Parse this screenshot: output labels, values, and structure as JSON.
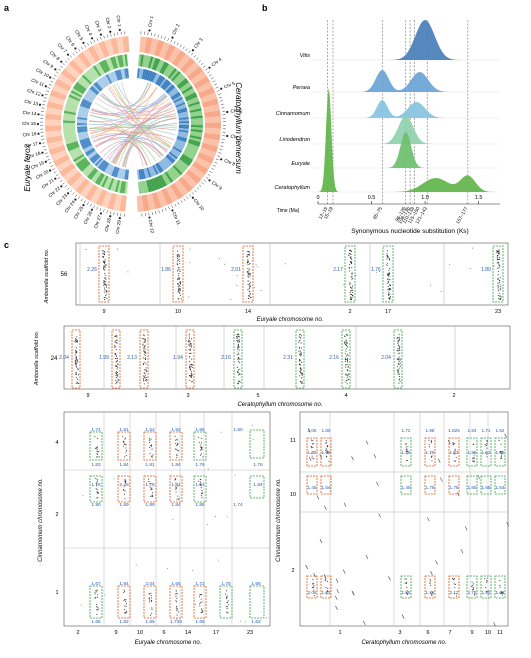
{
  "panels": {
    "a": "a",
    "b": "b",
    "c": "c"
  },
  "panel_a": {
    "left_label": "Euryale ferox",
    "right_label": "Ceratophyllum demersum",
    "left_chrs": [
      "Chr 1",
      "Chr 2",
      "Chr 3",
      "Chr 4",
      "Chr 5",
      "Chr 6",
      "Chr 7",
      "Chr 8",
      "Chr 9",
      "Chr 10",
      "Chr 11",
      "Chr 12",
      "Chr 13",
      "Chr 14",
      "Chr 15",
      "Chr 16",
      "Chr 17",
      "Chr 18",
      "Chr 19",
      "Chr 20",
      "Chr 21",
      "Chr 22",
      "Chr 23",
      "Chr 24",
      "Chr 25",
      "Chr 26",
      "Chr 27",
      "Chr 28",
      "Chr 29"
    ],
    "right_chrs": [
      "Chr 1",
      "Chr 2",
      "Chr 3",
      "Chr 4",
      "Chr 5",
      "Chr 6",
      "Chr 7",
      "Chr 8",
      "Chr 9",
      "Chr 10",
      "Chr 11",
      "Chr 12"
    ]
  },
  "chart_data": [
    {
      "type": "area",
      "panel": "b",
      "xlabel": "Synonymous nucleotide substitution (Ks)",
      "x_axis_left_label": "Time (Ma)",
      "xlim": [
        0,
        1.7
      ],
      "ks_ticks": [
        0,
        0.5,
        1.0,
        1.5
      ],
      "ks_tick_labels": [
        "0",
        "0.5",
        "1.0",
        "1.5"
      ],
      "time_labels": [
        {
          "label": "12–15",
          "ks": 0.09
        },
        {
          "label": "15–19",
          "ks": 0.14
        },
        {
          "label": "65–75",
          "ks": 0.6
        },
        {
          "label": "96–126",
          "ks": 0.82
        },
        {
          "label": "108–136",
          "ks": 0.86
        },
        {
          "label": "110–138",
          "ks": 0.9
        },
        {
          "label": "115–150",
          "ks": 0.95
        },
        {
          "label": "121–143",
          "ks": 1.02
        },
        {
          "label": "157–177",
          "ks": 1.4
        }
      ],
      "series": [
        {
          "name": "Vitis",
          "color": "#4a7fb8",
          "peaks": [
            {
              "mu": 1.0,
              "sd": 0.09,
              "h": 1.0
            }
          ]
        },
        {
          "name": "Persea",
          "color": "#6aa3d6",
          "peaks": [
            {
              "mu": 0.6,
              "sd": 0.06,
              "h": 0.55
            },
            {
              "mu": 0.95,
              "sd": 0.08,
              "h": 0.5
            }
          ]
        },
        {
          "name": "Cinnamomum",
          "color": "#86c3df",
          "peaks": [
            {
              "mu": 0.6,
              "sd": 0.05,
              "h": 0.45
            },
            {
              "mu": 0.92,
              "sd": 0.08,
              "h": 0.4
            }
          ]
        },
        {
          "name": "Liriodendron",
          "color": "#8fd1ae",
          "peaks": [
            {
              "mu": 0.82,
              "sd": 0.07,
              "h": 0.7
            }
          ]
        },
        {
          "name": "Euryale",
          "color": "#6cbf6c",
          "peaks": [
            {
              "mu": 0.82,
              "sd": 0.05,
              "h": 0.9
            }
          ]
        },
        {
          "name": "Ceratophyllum",
          "color": "#5fb54a",
          "peaks": [
            {
              "mu": 0.1,
              "sd": 0.025,
              "h": 2.6
            },
            {
              "mu": 1.1,
              "sd": 0.12,
              "h": 0.35
            },
            {
              "mu": 1.4,
              "sd": 0.07,
              "h": 0.4
            }
          ]
        }
      ]
    },
    {
      "type": "scatter",
      "panel": "c-top",
      "ylabel": "Amborella scaffold no.",
      "y_tick": "56",
      "xlabel": "Euryale chromosome no.",
      "columns": [
        {
          "chr": "9",
          "ks": [
            "2.26"
          ],
          "box": "orange"
        },
        {
          "chr": "10",
          "ks": [
            "1.86"
          ],
          "box": "orange"
        },
        {
          "chr": "14",
          "ks": [
            "2.01"
          ],
          "box": "orange"
        },
        {
          "chr": "2",
          "ks": [
            "2.17"
          ],
          "box": "green"
        },
        {
          "chr": "17",
          "ks": [
            "1.76"
          ],
          "box": "green"
        },
        {
          "chr": "23",
          "ks": [
            "1.80"
          ],
          "box": "green"
        }
      ]
    },
    {
      "type": "scatter",
      "panel": "c-mid",
      "ylabel": "Amborella scaffold no.",
      "y_tick": "24",
      "xlabel": "Ceratophyllum chromosome no.",
      "x_ticks": [
        "9",
        "1",
        "3",
        "5",
        "4",
        "2"
      ],
      "values": [
        "2.04",
        "1.99",
        "2.13",
        "1.94",
        "2.16",
        "2.31",
        "2.16",
        "2.04"
      ]
    },
    {
      "type": "scatter",
      "panel": "c-bottom-left",
      "ylabel": "Cinnamomum chromosome no.",
      "xlabel": "Euryale chromosome no.",
      "x_ticks": [
        "2",
        "9",
        "10",
        "6",
        "14",
        "17",
        "23"
      ],
      "y_ticks": [
        "4",
        "2",
        "1"
      ],
      "row4_top": [
        "1.74",
        "1.81",
        "1.52",
        "1.82",
        "1.68",
        "1.60"
      ],
      "row4_bottom": [
        "1.83",
        "1.84",
        "1.81",
        "1.84",
        "1.76",
        "1.76"
      ],
      "row2_top": [
        "1.76",
        "2.49",
        "1.76",
        "1.81",
        "1.84",
        "1.84"
      ],
      "row2_bottom": [
        "1.90",
        "1.69",
        "1.89",
        "1.84",
        "1.88",
        "1.74"
      ],
      "row1_top": [
        "1.67",
        "1.84",
        "2.04",
        "1.65",
        "1.72",
        "1.75",
        "1.68"
      ],
      "row1_bottom": [
        "1.65",
        "1.82",
        "1.85",
        "1.735",
        "1.68",
        "1.62"
      ]
    },
    {
      "type": "scatter",
      "panel": "c-bottom-right",
      "ylabel": "Cinnamomum chromosome no.",
      "xlabel": "Ceratophyllum chromosome no.",
      "x_ticks": [
        "1",
        "3",
        "6",
        "7",
        "9",
        "10",
        "11"
      ],
      "y_ticks": [
        "11",
        "10",
        "2"
      ],
      "row11_top": [
        "2.06",
        "1.80",
        "1.72",
        "1.98",
        "1.825",
        "1.83",
        "1.71",
        "1.62"
      ],
      "row11_mid": [
        "1.52",
        "1.69",
        "1.55",
        "1.79",
        "1.93",
        "1.56",
        "1.93",
        "1.95"
      ],
      "row10": [
        "1.45",
        "1.54",
        "1.40",
        "1.75",
        "1.75",
        "1.80",
        "1.65",
        "1.64"
      ],
      "row2": [
        "2.06",
        "1.42",
        "1.55",
        "1.75",
        "2.17",
        "1.78",
        "1.80",
        "1.66"
      ]
    }
  ]
}
